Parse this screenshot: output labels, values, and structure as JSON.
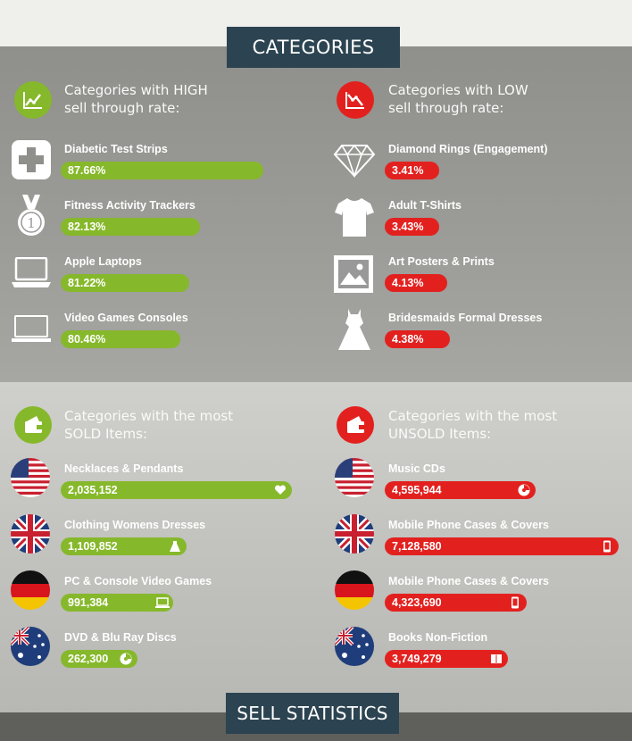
{
  "headers": {
    "categories": "CATEGORIES",
    "sell_statistics": "SELL STATISTICS"
  },
  "colors": {
    "green": "#86b82b",
    "red": "#e2211f",
    "banner": "#2c4451"
  },
  "sections": {
    "high": {
      "title": "Categories with HIGH\nsell through rate:",
      "icon": "chart-up-icon"
    },
    "low": {
      "title": "Categories with LOW\nsell through rate:",
      "icon": "chart-down-icon"
    },
    "sold": {
      "title": "Categories with the most\nSOLD Items:",
      "icon": "wallet-icon"
    },
    "unsold": {
      "title": "Categories with the most\nUNSOLD Items:",
      "icon": "wallet-icon"
    }
  },
  "chart_data": [
    {
      "type": "bar",
      "title": "Categories with HIGH sell through rate:",
      "categories": [
        "Diabetic Test Strips",
        "Fitness Activity Trackers",
        "Apple Laptops",
        "Video Games Consoles"
      ],
      "values": [
        87.66,
        82.13,
        81.22,
        80.46
      ],
      "labels": [
        "87.66%",
        "82.13%",
        "81.22%",
        "80.46%"
      ],
      "icons": [
        "medical-cross-icon",
        "medal-icon",
        "laptop-icon",
        "laptop-icon"
      ],
      "color": "#86b82b"
    },
    {
      "type": "bar",
      "title": "Categories with LOW sell through rate:",
      "categories": [
        "Diamond Rings (Engagement)",
        "Adult T-Shirts",
        "Art Posters & Prints",
        "Bridesmaids Formal Dresses"
      ],
      "values": [
        3.41,
        3.43,
        4.13,
        4.38
      ],
      "labels": [
        "3.41%",
        "3.43%",
        "4.13%",
        "4.38%"
      ],
      "icons": [
        "diamond-icon",
        "tshirt-icon",
        "picture-icon",
        "dress-icon"
      ],
      "color": "#e2211f"
    },
    {
      "type": "bar",
      "title": "Categories with the most SOLD Items:",
      "categories": [
        "Necklaces & Pendants",
        "Clothing Womens Dresses",
        "PC & Console Video Games",
        "DVD & Blu Ray Discs"
      ],
      "values": [
        2035152,
        1109852,
        991384,
        262300
      ],
      "labels": [
        "2,035,152",
        "1,109,852",
        "991,384",
        "262,300"
      ],
      "flags": [
        "us-flag-icon",
        "uk-flag-icon",
        "germany-flag-icon",
        "australia-flag-icon"
      ],
      "end_icons": [
        "heart-icon",
        "dress-icon",
        "laptop-icon",
        "disc-icon"
      ],
      "color": "#86b82b"
    },
    {
      "type": "bar",
      "title": "Categories with the most UNSOLD Items:",
      "categories": [
        "Music CDs",
        "Mobile Phone Cases & Covers",
        "Mobile Phone Cases & Covers",
        "Books Non-Fiction"
      ],
      "values": [
        4595944,
        7128580,
        4323690,
        3749279
      ],
      "labels": [
        "4,595,944",
        "7,128,580",
        "4,323,690",
        "3,749,279"
      ],
      "flags": [
        "us-flag-icon",
        "uk-flag-icon",
        "germany-flag-icon",
        "australia-flag-icon"
      ],
      "end_icons": [
        "disc-icon",
        "phone-icon",
        "phone-icon",
        "book-icon"
      ],
      "color": "#e2211f"
    }
  ]
}
